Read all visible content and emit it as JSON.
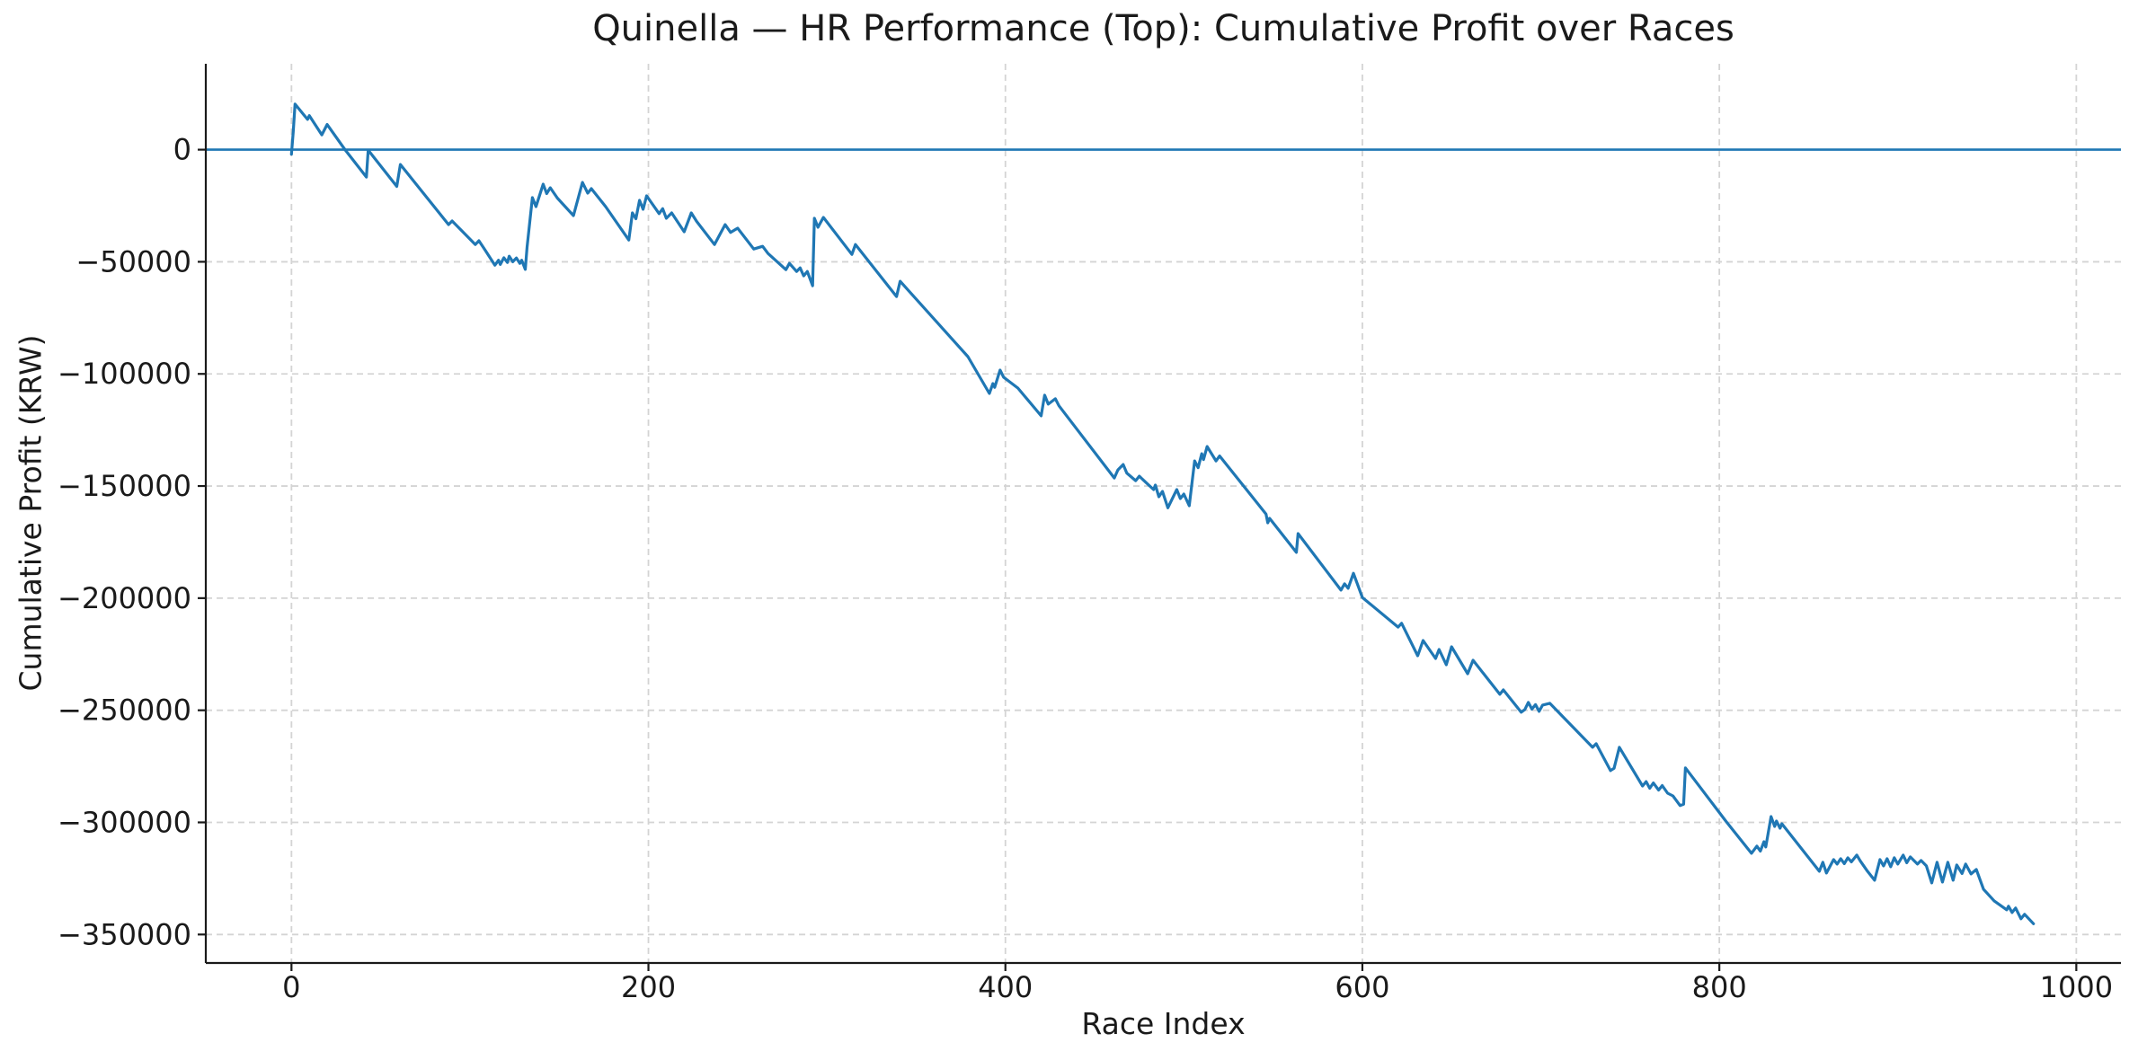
{
  "chart_data": {
    "type": "line",
    "title": "Quinella — HR Performance (Top): Cumulative Profit over Races",
    "xlabel": "Race Index",
    "ylabel": "Cumulative Profit (KRW)",
    "xlim": [
      -48,
      1025
    ],
    "ylim": [
      -362700,
      38300
    ],
    "xticks": [
      0,
      200,
      400,
      600,
      800,
      1000
    ],
    "xtick_labels": [
      "0",
      "200",
      "400",
      "600",
      "800",
      "1000"
    ],
    "yticks": [
      0,
      -50000,
      -100000,
      -150000,
      -200000,
      -250000,
      -300000,
      -350000
    ],
    "ytick_labels": [
      "0",
      "−50000",
      "−100000",
      "−150000",
      "−200000",
      "−250000",
      "−300000",
      "−350000"
    ],
    "grid": true,
    "legend": "none",
    "zero_line_y": 0,
    "colors": {
      "line": "#1f77b4",
      "zero_line": "#1f77b4",
      "grid": "#d4d4d4",
      "spine": "#1a1a1a",
      "text": "#1a1a1a",
      "background": "#ffffff"
    },
    "series": [
      {
        "name": "Cumulative Profit",
        "x": [
          0,
          1,
          2,
          9,
          10,
          17,
          20,
          30,
          42,
          43,
          59,
          61,
          88,
          90,
          103,
          105,
          108,
          114,
          116,
          117,
          119,
          121,
          122,
          124,
          126,
          128,
          129,
          131,
          132,
          135,
          137,
          141,
          143,
          145,
          149,
          158,
          163,
          166,
          168,
          176,
          189,
          191,
          193,
          195,
          197,
          199,
          206,
          208,
          210,
          213,
          220,
          224,
          227,
          237,
          243,
          246,
          250,
          259,
          264,
          267,
          277,
          279,
          283,
          285,
          287,
          289,
          292,
          293,
          295,
          298,
          314,
          316,
          339,
          341,
          379,
          391,
          393,
          394,
          397,
          399,
          407,
          420,
          422,
          424,
          428,
          430,
          461,
          463,
          466,
          468,
          473,
          475,
          483,
          484,
          486,
          488,
          491,
          496,
          498,
          500,
          503,
          506,
          508,
          510,
          511,
          513,
          518,
          520,
          546,
          547,
          548,
          563,
          564,
          588,
          590,
          592,
          595,
          600,
          620,
          622,
          631,
          634,
          641,
          643,
          647,
          650,
          659,
          662,
          677,
          679,
          689,
          691,
          693,
          695,
          697,
          699,
          701,
          705,
          729,
          731,
          739,
          741,
          744,
          757,
          759,
          761,
          763,
          766,
          768,
          771,
          774,
          778,
          780,
          781,
          804,
          818,
          821,
          823,
          825,
          826,
          829,
          831,
          832,
          834,
          835,
          856,
          858,
          860,
          864,
          866,
          868,
          870,
          872,
          874,
          877,
          879,
          883,
          887,
          890,
          892,
          894,
          896,
          898,
          900,
          903,
          905,
          907,
          909,
          911,
          913,
          916,
          919,
          922,
          925,
          928,
          931,
          933,
          936,
          938,
          941,
          944,
          948,
          954,
          961,
          962,
          964,
          966,
          969,
          971,
          976
        ],
        "y": [
          -2000,
          8000,
          20300,
          13500,
          15200,
          6600,
          11200,
          0,
          -12200,
          -200,
          -16400,
          -6600,
          -33400,
          -31800,
          -42300,
          -40600,
          -44200,
          -51500,
          -49300,
          -51200,
          -48200,
          -50300,
          -47500,
          -50000,
          -48300,
          -50700,
          -49300,
          -53400,
          -43400,
          -21400,
          -25400,
          -15400,
          -19600,
          -17000,
          -21600,
          -29400,
          -14600,
          -19400,
          -17400,
          -25400,
          -40300,
          -28200,
          -30800,
          -22600,
          -26600,
          -20600,
          -28500,
          -26300,
          -30600,
          -28200,
          -36600,
          -28200,
          -32000,
          -42300,
          -33400,
          -36900,
          -35000,
          -44300,
          -43100,
          -46300,
          -53500,
          -50700,
          -54300,
          -52700,
          -56300,
          -54300,
          -60700,
          -30600,
          -34600,
          -30200,
          -46700,
          -42300,
          -65500,
          -58700,
          -92300,
          -108700,
          -104300,
          -106000,
          -98300,
          -101500,
          -106300,
          -118700,
          -109500,
          -113500,
          -111100,
          -114200,
          -146400,
          -142800,
          -140400,
          -144200,
          -147600,
          -145600,
          -151600,
          -149600,
          -154800,
          -152400,
          -159700,
          -151600,
          -155600,
          -153600,
          -158800,
          -138800,
          -141800,
          -135600,
          -138200,
          -132400,
          -138800,
          -136600,
          -162500,
          -166400,
          -164400,
          -179600,
          -171200,
          -196400,
          -193600,
          -195600,
          -188900,
          -199700,
          -212900,
          -211200,
          -225700,
          -218900,
          -226900,
          -222900,
          -229700,
          -221700,
          -233700,
          -227700,
          -242900,
          -240900,
          -250900,
          -249700,
          -246500,
          -249500,
          -247500,
          -250500,
          -247700,
          -246900,
          -266500,
          -264900,
          -276900,
          -275900,
          -266500,
          -283800,
          -281800,
          -284800,
          -282400,
          -285600,
          -283600,
          -287000,
          -288200,
          -292500,
          -291900,
          -275700,
          -299800,
          -313800,
          -310600,
          -312800,
          -308600,
          -311000,
          -297400,
          -301800,
          -299400,
          -302600,
          -300600,
          -321800,
          -317800,
          -322600,
          -316600,
          -318600,
          -316200,
          -318400,
          -315800,
          -317600,
          -314600,
          -317200,
          -321800,
          -325800,
          -316600,
          -319400,
          -316200,
          -319800,
          -315800,
          -318600,
          -314600,
          -318000,
          -315400,
          -317000,
          -318600,
          -317000,
          -319400,
          -327000,
          -317800,
          -326600,
          -317800,
          -325800,
          -319000,
          -322800,
          -318600,
          -323000,
          -321000,
          -329800,
          -335000,
          -339000,
          -337400,
          -340200,
          -338200,
          -343000,
          -341000,
          -345200
        ]
      }
    ]
  }
}
